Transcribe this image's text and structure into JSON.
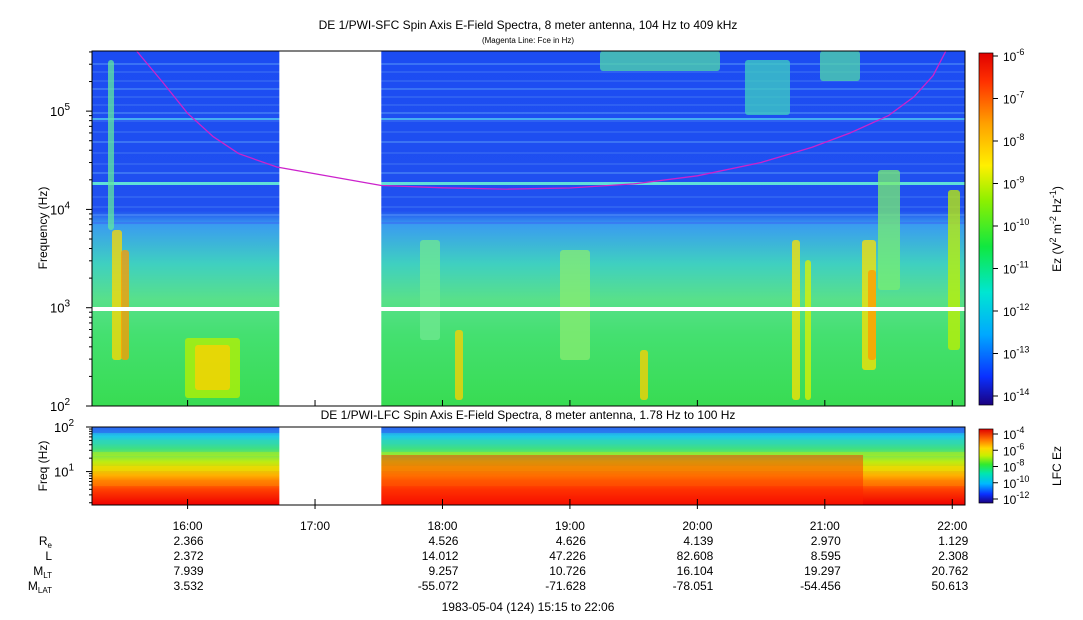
{
  "chart_data": [
    {
      "type": "heatmap",
      "title": "DE 1/PWI-SFC  Spin Axis E-Field Spectra, 8 meter antenna, 104 Hz to 409 kHz",
      "subtitle": "(Magenta Line: Fce in Hz)",
      "ylabel": "Frequency (Hz)",
      "yscale": "log",
      "ylim": [
        100,
        409000
      ],
      "yticks": [
        {
          "value": 100,
          "base": "10",
          "exp": "2"
        },
        {
          "value": 1000,
          "base": "10",
          "exp": "3"
        },
        {
          "value": 10000,
          "base": "10",
          "exp": "4"
        },
        {
          "value": 100000,
          "base": "10",
          "exp": "5"
        }
      ],
      "xlim_hours": [
        15.25,
        22.1
      ],
      "data_gap_hours": [
        16.72,
        17.52
      ],
      "colorbar": {
        "label_parts": [
          "Ez (V",
          "2",
          " m",
          "-2",
          " Hz",
          "-1",
          ")"
        ],
        "scale": "log",
        "ticks": [
          {
            "base": "10",
            "exp": "-6"
          },
          {
            "base": "10",
            "exp": "-7"
          },
          {
            "base": "10",
            "exp": "-8"
          },
          {
            "base": "10",
            "exp": "-9"
          },
          {
            "base": "10",
            "exp": "-10"
          },
          {
            "base": "10",
            "exp": "-11"
          },
          {
            "base": "10",
            "exp": "-12"
          },
          {
            "base": "10",
            "exp": "-13"
          },
          {
            "base": "10",
            "exp": "-14"
          }
        ]
      },
      "fce_line": {
        "color": "#cc22cc",
        "points": [
          {
            "t": 15.6,
            "f": 409000
          },
          {
            "t": 15.8,
            "f": 200000
          },
          {
            "t": 16.0,
            "f": 95000
          },
          {
            "t": 16.2,
            "f": 55000
          },
          {
            "t": 16.4,
            "f": 37000
          },
          {
            "t": 16.7,
            "f": 27000
          },
          {
            "t": 17.52,
            "f": 17500
          },
          {
            "t": 18.0,
            "f": 16600
          },
          {
            "t": 18.5,
            "f": 16100
          },
          {
            "t": 19.0,
            "f": 16500
          },
          {
            "t": 19.5,
            "f": 18200
          },
          {
            "t": 20.0,
            "f": 22000
          },
          {
            "t": 20.5,
            "f": 30000
          },
          {
            "t": 20.9,
            "f": 43000
          },
          {
            "t": 21.2,
            "f": 60000
          },
          {
            "t": 21.5,
            "f": 90000
          },
          {
            "t": 21.7,
            "f": 140000
          },
          {
            "t": 21.85,
            "f": 230000
          },
          {
            "t": 21.95,
            "f": 409000
          }
        ]
      }
    },
    {
      "type": "heatmap",
      "title": "DE 1/PWI-LFC  Spin Axis E-Field Spectra, 8 meter antenna, 1.78 Hz to 100 Hz",
      "ylabel": "Freq (Hz)",
      "yscale": "log",
      "ylim": [
        1.78,
        100
      ],
      "yticks": [
        {
          "value": 10,
          "base": "10",
          "exp": "1"
        },
        {
          "value": 100,
          "base": "10",
          "exp": "2"
        }
      ],
      "xlim_hours": [
        15.25,
        22.1
      ],
      "data_gap_hours": [
        16.72,
        17.52
      ],
      "colorbar": {
        "label": "LFC Ez",
        "scale": "log",
        "ticks": [
          {
            "base": "10",
            "exp": "-4"
          },
          {
            "base": "10",
            "exp": "-6"
          },
          {
            "base": "10",
            "exp": "-8"
          },
          {
            "base": "10",
            "exp": "-10"
          },
          {
            "base": "10",
            "exp": "-12"
          }
        ]
      }
    }
  ],
  "time_axis": {
    "ticks": [
      {
        "t": 16.0,
        "label": "16:00"
      },
      {
        "t": 17.0,
        "label": "17:00"
      },
      {
        "t": 18.0,
        "label": "18:00"
      },
      {
        "t": 19.0,
        "label": "19:00"
      },
      {
        "t": 20.0,
        "label": "20:00"
      },
      {
        "t": 21.0,
        "label": "21:00"
      },
      {
        "t": 22.0,
        "label": "22:00"
      }
    ]
  },
  "ephemeris": {
    "rows": [
      {
        "label": "R",
        "sub": "e",
        "values": [
          "2.366",
          "",
          "4.526",
          "4.626",
          "4.139",
          "2.970",
          "1.129"
        ]
      },
      {
        "label": "L",
        "sub": "",
        "values": [
          "2.372",
          "",
          "14.012",
          "47.226",
          "82.608",
          "8.595",
          "2.308"
        ]
      },
      {
        "label": "M",
        "sub": "LT",
        "values": [
          "7.939",
          "",
          "9.257",
          "10.726",
          "16.104",
          "19.297",
          "20.762"
        ]
      },
      {
        "label": "M",
        "sub": "LAT",
        "values": [
          "3.532",
          "",
          "-55.072",
          "-71.628",
          "-78.051",
          "-54.456",
          "50.613"
        ]
      }
    ]
  },
  "footer": "1983-05-04 (124) 15:15 to 22:06"
}
